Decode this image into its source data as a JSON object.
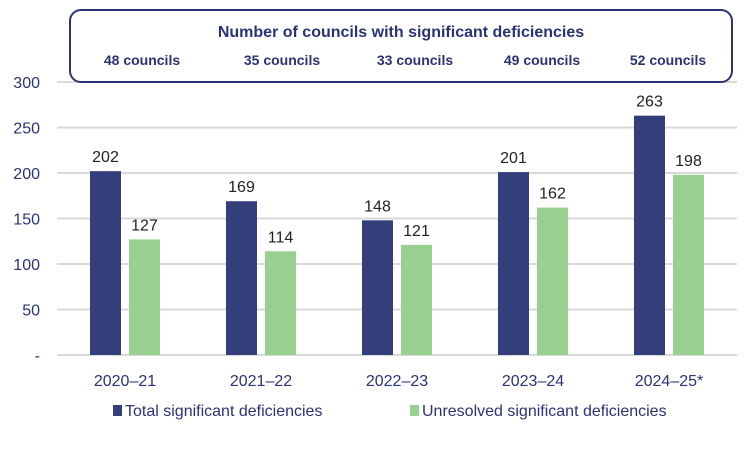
{
  "chart_data": {
    "type": "bar",
    "categories": [
      "2020–21",
      "2021–22",
      "2022–23",
      "2023–24",
      "2024–25*"
    ],
    "series": [
      {
        "name": "Total significant deficiencies",
        "values": [
          202,
          169,
          148,
          201,
          263
        ],
        "color": "#343e7a"
      },
      {
        "name": "Unresolved significant deficiencies",
        "values": [
          127,
          114,
          121,
          162,
          198
        ],
        "color": "#98d08f"
      }
    ],
    "ylim": [
      0,
      300
    ],
    "yticks": [
      0,
      50,
      100,
      150,
      200,
      250,
      300
    ],
    "ytick_labels": [
      "-",
      "50",
      "100",
      "150",
      "200",
      "250",
      "300"
    ],
    "grid": true,
    "legend": "bottom",
    "annotation_box": {
      "title": "Number of councils with significant deficiencies",
      "counts": [
        "48 councils",
        "35 councils",
        "33 councils",
        "49 councils",
        "52 councils"
      ]
    }
  }
}
